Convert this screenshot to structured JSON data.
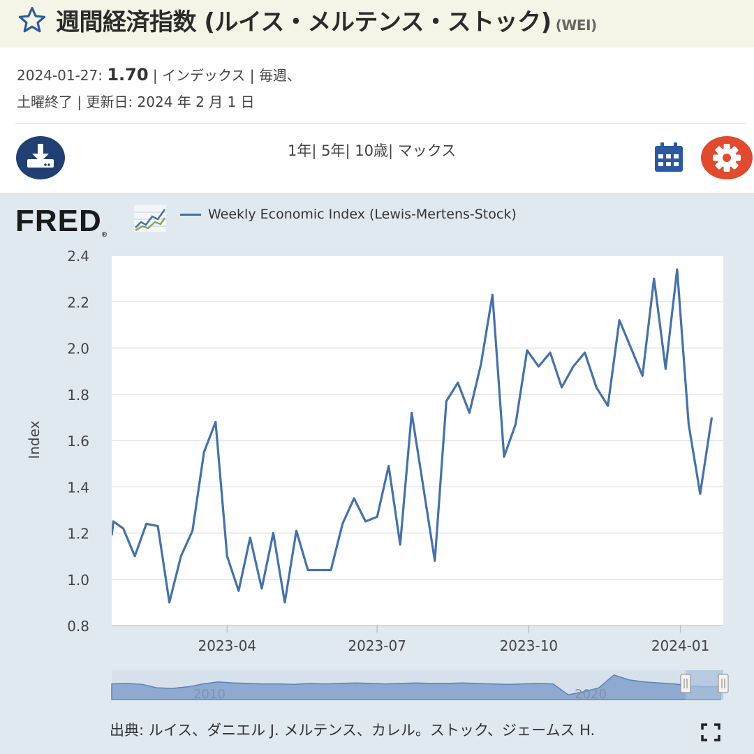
{
  "header": {
    "title": "週間経済指数 (ルイス・メルテンス・ストック)",
    "code": "(WEI)",
    "star_icon": "star-outline-icon"
  },
  "meta": {
    "date_label": "2024-01-27:",
    "value": "1.70",
    "units": "| インデックス | 毎週、",
    "line2": "土曜終了 | 更新日: 2024 年 2 月 1 日"
  },
  "toolbar": {
    "download_icon": "download-icon",
    "ranges": [
      "1年",
      "5年",
      "10歳",
      "マックス"
    ],
    "calendar_icon": "calendar-icon",
    "settings_icon": "gear-icon"
  },
  "brand": {
    "logo_text": "FRED",
    "registered": "®"
  },
  "chart_data": {
    "type": "line",
    "legend": "Weekly Economic Index (Lewis-Mertens-Stock)",
    "ylabel": "Index",
    "ylim": [
      0.8,
      2.4
    ],
    "yticks": [
      "0.8",
      "1.0",
      "1.2",
      "1.4",
      "1.6",
      "1.8",
      "2.0",
      "2.2",
      "2.4"
    ],
    "xticks": [
      {
        "date": "2023-04-01",
        "label": "2023-04"
      },
      {
        "date": "2023-07-01",
        "label": "2023-07"
      },
      {
        "date": "2023-10-01",
        "label": "2023-10"
      },
      {
        "date": "2024-01-01",
        "label": "2024-01"
      }
    ],
    "xlim": [
      "2023-01-21",
      "2024-01-27"
    ],
    "color": "#4572a7",
    "grid": true,
    "series": [
      {
        "points": [
          [
            "2023-01-21",
            1.19
          ],
          [
            "2023-01-22",
            1.25
          ],
          [
            "2023-01-28",
            1.22
          ],
          [
            "2023-02-04",
            1.1
          ],
          [
            "2023-02-11",
            1.24
          ],
          [
            "2023-02-18",
            1.23
          ],
          [
            "2023-02-25",
            0.9
          ],
          [
            "2023-03-04",
            1.1
          ],
          [
            "2023-03-11",
            1.21
          ],
          [
            "2023-03-18",
            1.55
          ],
          [
            "2023-03-25",
            1.68
          ],
          [
            "2023-04-01",
            1.1
          ],
          [
            "2023-04-08",
            0.95
          ],
          [
            "2023-04-15",
            1.18
          ],
          [
            "2023-04-22",
            0.96
          ],
          [
            "2023-04-29",
            1.2
          ],
          [
            "2023-05-06",
            0.9
          ],
          [
            "2023-05-13",
            1.21
          ],
          [
            "2023-05-20",
            1.04
          ],
          [
            "2023-05-27",
            1.04
          ],
          [
            "2023-06-03",
            1.04
          ],
          [
            "2023-06-10",
            1.24
          ],
          [
            "2023-06-17",
            1.35
          ],
          [
            "2023-06-24",
            1.25
          ],
          [
            "2023-07-01",
            1.27
          ],
          [
            "2023-07-08",
            1.49
          ],
          [
            "2023-07-15",
            1.15
          ],
          [
            "2023-07-22",
            1.72
          ],
          [
            "2023-07-29",
            1.4
          ],
          [
            "2023-08-05",
            1.08
          ],
          [
            "2023-08-12",
            1.77
          ],
          [
            "2023-08-19",
            1.85
          ],
          [
            "2023-08-26",
            1.72
          ],
          [
            "2023-09-02",
            1.93
          ],
          [
            "2023-09-09",
            2.23
          ],
          [
            "2023-09-16",
            1.53
          ],
          [
            "2023-09-23",
            1.67
          ],
          [
            "2023-09-30",
            1.99
          ],
          [
            "2023-10-07",
            1.92
          ],
          [
            "2023-10-14",
            1.98
          ],
          [
            "2023-10-21",
            1.83
          ],
          [
            "2023-10-28",
            1.92
          ],
          [
            "2023-11-04",
            1.98
          ],
          [
            "2023-11-11",
            1.83
          ],
          [
            "2023-11-18",
            1.75
          ],
          [
            "2023-11-25",
            2.12
          ],
          [
            "2023-12-02",
            2.0
          ],
          [
            "2023-12-09",
            1.88
          ],
          [
            "2023-12-16",
            2.3
          ],
          [
            "2023-12-23",
            1.91
          ],
          [
            "2023-12-30",
            2.34
          ],
          [
            "2024-01-06",
            1.67
          ],
          [
            "2024-01-13",
            1.37
          ],
          [
            "2024-01-20",
            1.7
          ]
        ]
      }
    ],
    "navigator": {
      "labels": [
        "2010",
        "2020"
      ],
      "values": [
        0.5,
        0.55,
        0.45,
        0.1,
        0.05,
        0.2,
        0.5,
        0.7,
        0.6,
        0.55,
        0.5,
        0.5,
        0.45,
        0.55,
        0.5,
        0.55,
        0.6,
        0.55,
        0.5,
        0.55,
        0.6,
        0.55,
        0.55,
        0.6,
        0.55,
        0.5,
        0.45,
        0.5,
        0.55,
        0.5,
        -0.6,
        -0.3,
        0.1,
        1.4,
        0.9,
        0.7,
        0.6,
        0.5,
        0.3,
        0.2,
        0.25
      ]
    }
  },
  "source": {
    "text": "出典: ルイス、ダニエル J. メルテンス、カレル。ストック、ジェームス H.",
    "expand_icon": "fullscreen-icon"
  }
}
